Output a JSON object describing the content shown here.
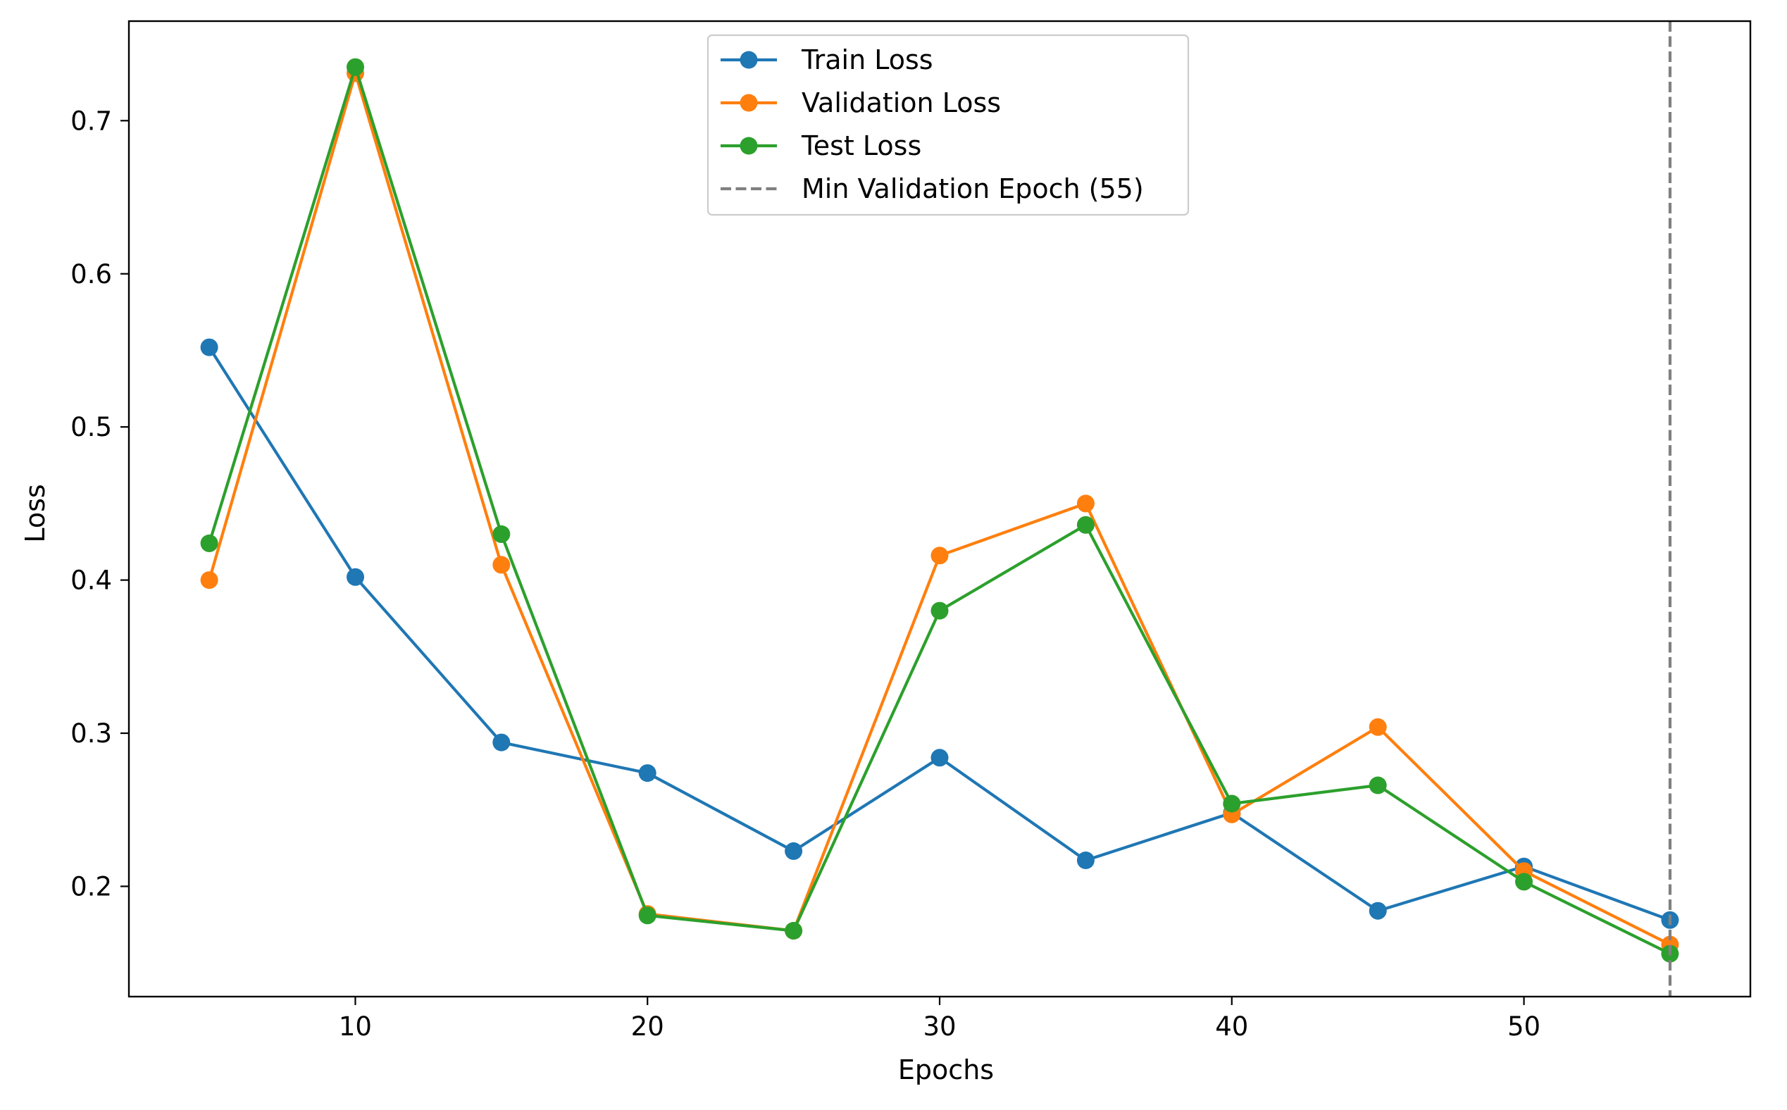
{
  "chart_data": {
    "type": "line",
    "title": "",
    "xlabel": "Epochs",
    "ylabel": "Loss",
    "xlim": [
      2.25,
      57.75
    ],
    "ylim": [
      0.128,
      0.765
    ],
    "x_ticks": [
      10,
      20,
      30,
      40,
      50
    ],
    "y_ticks": [
      0.2,
      0.3,
      0.4,
      0.5,
      0.6,
      0.7
    ],
    "x_tick_labels": [
      "10",
      "20",
      "30",
      "40",
      "50"
    ],
    "y_tick_labels": [
      "0.2",
      "0.3",
      "0.4",
      "0.5",
      "0.6",
      "0.7"
    ],
    "grid": false,
    "legend_position": "top-center",
    "x": [
      5,
      10,
      15,
      20,
      25,
      30,
      35,
      40,
      45,
      50,
      55
    ],
    "series": [
      {
        "name": "Train Loss",
        "color": "#1f77b4",
        "marker": "circle",
        "values": [
          0.552,
          0.402,
          0.294,
          0.274,
          0.223,
          0.284,
          0.217,
          0.248,
          0.184,
          0.213,
          0.178
        ]
      },
      {
        "name": "Validation Loss",
        "color": "#ff7f0e",
        "marker": "circle",
        "values": [
          0.4,
          0.731,
          0.41,
          0.182,
          0.171,
          0.416,
          0.45,
          0.247,
          0.304,
          0.21,
          0.162
        ]
      },
      {
        "name": "Test Loss",
        "color": "#2ca02c",
        "marker": "circle",
        "values": [
          0.424,
          0.735,
          0.43,
          0.181,
          0.171,
          0.38,
          0.436,
          0.254,
          0.266,
          0.203,
          0.156
        ]
      }
    ],
    "vline": {
      "name": "Min Validation Epoch (55)",
      "x": 55,
      "color": "#808080",
      "style": "dashed"
    }
  }
}
